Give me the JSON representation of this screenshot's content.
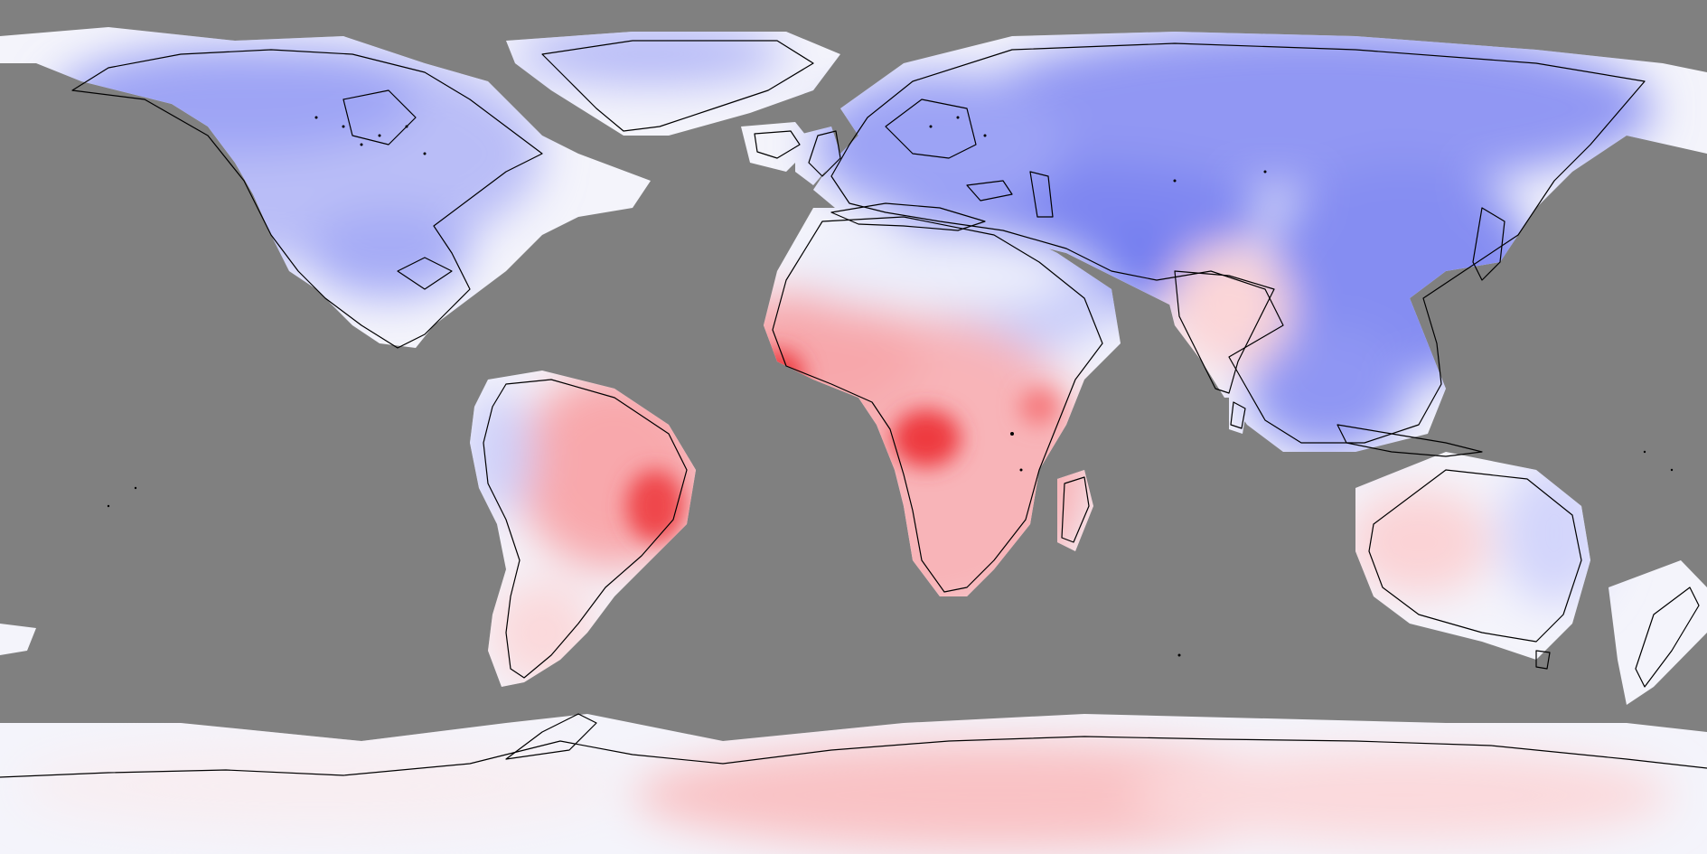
{
  "map": {
    "projection": "equirectangular",
    "ocean_color": "#808080",
    "coastline_color": "#000000",
    "palette": {
      "strong_cold": "#6f7af0",
      "cold": "#9aa0f6",
      "cool": "#c6caf9",
      "neutral": "#f4f4fb",
      "warm": "#fbcfd2",
      "hot": "#f79a9e",
      "strong_hot": "#ee3a3f"
    },
    "regions": [
      "north-america",
      "greenland",
      "canadian-arctic",
      "south-america",
      "africa",
      "eurasia",
      "middle-east",
      "india",
      "southeast-asia",
      "australia",
      "new-zealand",
      "antarctica",
      "iceland",
      "british-isles",
      "madagascar",
      "sri-lanka"
    ]
  }
}
